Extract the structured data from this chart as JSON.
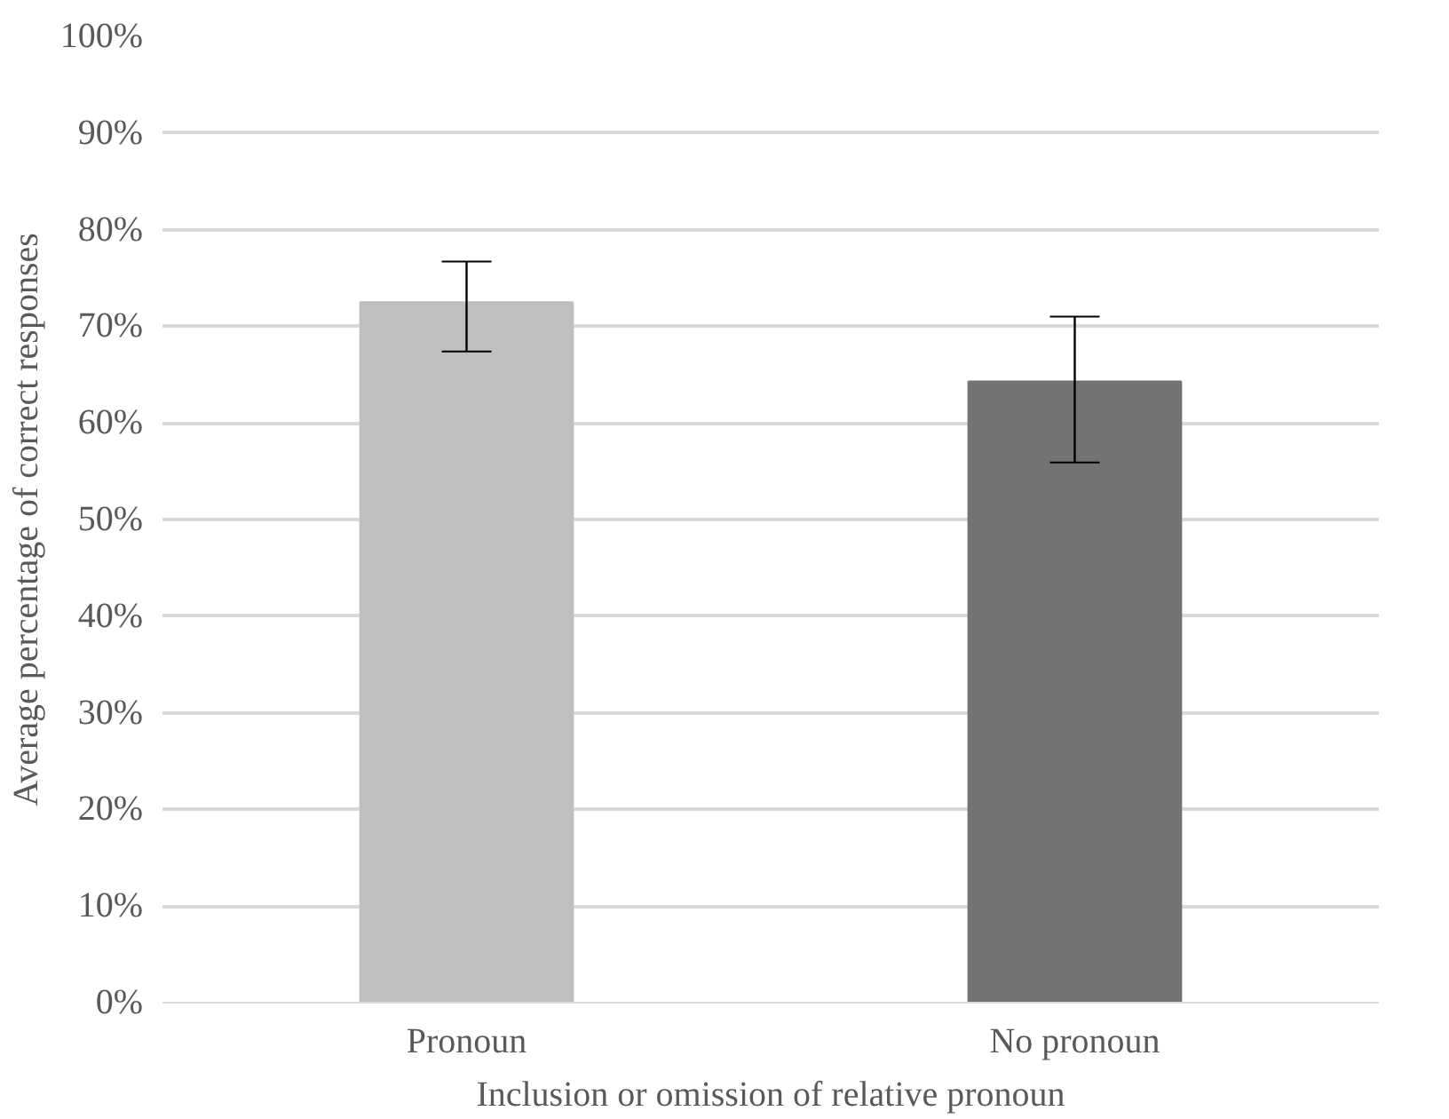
{
  "chart_data": {
    "type": "bar",
    "xlabel": "Inclusion or omission of relative pronoun",
    "ylabel": "Average percentage of correct responses",
    "categories": [
      "Pronoun",
      "No pronoun"
    ],
    "values": [
      72.5,
      64.3
    ],
    "colors": [
      "#bfbfbf",
      "#737373"
    ],
    "errors": [
      [
        67.4,
        76.7
      ],
      [
        55.9,
        71.0
      ]
    ],
    "ylim": [
      0,
      100
    ],
    "yticks": [
      {
        "value": 0,
        "label": "0%"
      },
      {
        "value": 10,
        "label": "10%"
      },
      {
        "value": 20,
        "label": "20%"
      },
      {
        "value": 30,
        "label": "30%"
      },
      {
        "value": 40,
        "label": "40%"
      },
      {
        "value": 50,
        "label": "50%"
      },
      {
        "value": 60,
        "label": "60%"
      },
      {
        "value": 70,
        "label": "70%"
      },
      {
        "value": 80,
        "label": "80%"
      },
      {
        "value": 90,
        "label": "90%"
      },
      {
        "value": 100,
        "label": "100%"
      }
    ],
    "grid": "y"
  }
}
